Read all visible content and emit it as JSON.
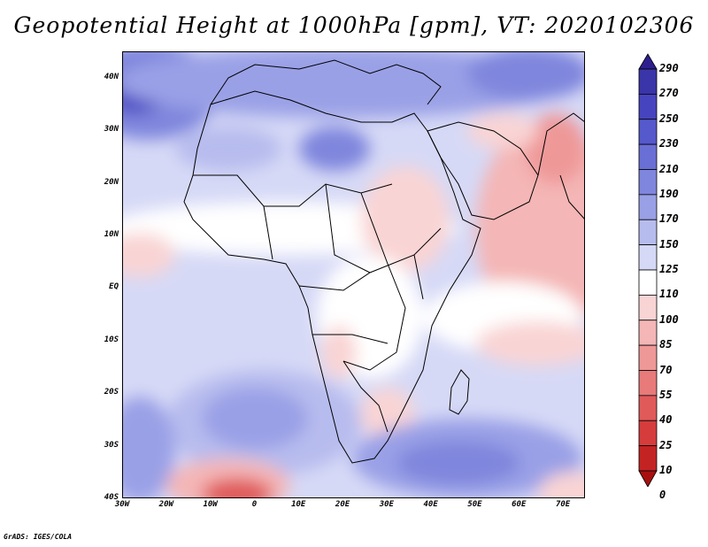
{
  "title": "Geopotential Height at 1000hPa [gpm], VT: 2020102306",
  "credit": "GrADS: IGES/COLA",
  "map": {
    "lon_range": [
      -30,
      75
    ],
    "lat_range": [
      -40,
      45
    ],
    "lat_ticks": [
      {
        "value": 40,
        "label": "40N"
      },
      {
        "value": 30,
        "label": "30N"
      },
      {
        "value": 20,
        "label": "20N"
      },
      {
        "value": 10,
        "label": "10N"
      },
      {
        "value": 0,
        "label": "EQ"
      },
      {
        "value": -10,
        "label": "10S"
      },
      {
        "value": -20,
        "label": "20S"
      },
      {
        "value": -30,
        "label": "30S"
      },
      {
        "value": -40,
        "label": "40S"
      }
    ],
    "lon_ticks": [
      {
        "value": -30,
        "label": "30W"
      },
      {
        "value": -20,
        "label": "20W"
      },
      {
        "value": -10,
        "label": "10W"
      },
      {
        "value": 0,
        "label": "0"
      },
      {
        "value": 10,
        "label": "10E"
      },
      {
        "value": 20,
        "label": "20E"
      },
      {
        "value": 30,
        "label": "30E"
      },
      {
        "value": 40,
        "label": "40E"
      },
      {
        "value": 50,
        "label": "50E"
      },
      {
        "value": 60,
        "label": "60E"
      },
      {
        "value": 70,
        "label": "70E"
      }
    ]
  },
  "colorbar": {
    "levels": [
      "290",
      "270",
      "250",
      "230",
      "210",
      "190",
      "170",
      "150",
      "125",
      "110",
      "100",
      "85",
      "70",
      "55",
      "40",
      "25",
      "10",
      "0"
    ],
    "colors": [
      "#2e1f8f",
      "#3a35a8",
      "#4744c0",
      "#5559cc",
      "#6a6fd6",
      "#7f86dd",
      "#9aa0e6",
      "#b7bcee",
      "#d6d9f6",
      "#ffffff",
      "#f9d4d4",
      "#f4b6b6",
      "#ef9898",
      "#e87a7a",
      "#e05a5a",
      "#d63c3c",
      "#c42323",
      "#a81010"
    ]
  }
}
